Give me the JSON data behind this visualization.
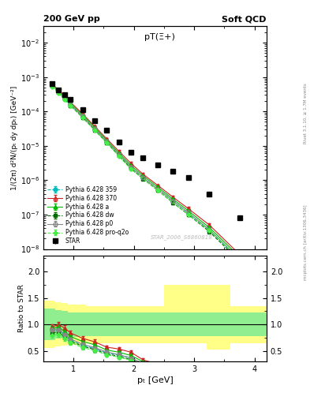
{
  "title_top_left": "200 GeV pp",
  "title_top_right": "Soft QCD",
  "plot_title": "pT(Ξ+)",
  "ylabel_main": "1/(2π) d²N/(pₜ dy dpₜ) [GeV⁻²]",
  "ylabel_ratio": "Ratio to STAR",
  "xlabel": "pₜ [GeV]",
  "watermark": "STAR_2006_S6860818",
  "right_label_top": "Rivet 3.1.10, ≥ 1.7M events",
  "right_label_bot": "mcplots.cern.ch [arXiv:1306.3436]",
  "star_pt": [
    0.65,
    0.75,
    0.85,
    0.95,
    1.15,
    1.35,
    1.55,
    1.75,
    1.95,
    2.15,
    2.4,
    2.65,
    2.9,
    3.25,
    3.75
  ],
  "star_val": [
    0.00065,
    0.00042,
    0.0003,
    0.00022,
    0.000115,
    5.5e-05,
    2.8e-05,
    1.3e-05,
    6.5e-06,
    4.5e-06,
    2.8e-06,
    1.8e-06,
    1.2e-06,
    4e-07,
    8e-08
  ],
  "star_err": [
    4e-05,
    3e-05,
    2e-05,
    1.5e-05,
    8e-06,
    4e-06,
    2e-06,
    9e-07,
    5e-07,
    3e-07,
    2e-07,
    1.5e-07,
    1e-07,
    4e-08,
    1e-08
  ],
  "p359_pt": [
    0.65,
    0.75,
    0.85,
    0.95,
    1.15,
    1.35,
    1.55,
    1.75,
    1.95,
    2.15,
    2.4,
    2.65,
    2.9,
    3.25,
    3.75
  ],
  "p359_val": [
    0.00058,
    0.00038,
    0.00024,
    0.000155,
    7e-05,
    3e-05,
    1.3e-05,
    5.5e-06,
    2.4e-06,
    1.2e-06,
    5.5e-07,
    2.5e-07,
    1.1e-07,
    3.5e-08,
    5e-09
  ],
  "p359_err": [
    3e-05,
    2e-05,
    1.5e-05,
    1e-05,
    5e-06,
    2.5e-06,
    1e-06,
    4e-07,
    2e-07,
    1e-07,
    5e-08,
    3e-08,
    1.5e-08,
    5e-09,
    8e-10
  ],
  "p370_pt": [
    0.65,
    0.75,
    0.85,
    0.95,
    1.15,
    1.35,
    1.55,
    1.75,
    1.95,
    2.15,
    2.4,
    2.65,
    2.9,
    3.25,
    3.75
  ],
  "p370_val": [
    0.00062,
    0.00042,
    0.00028,
    0.000185,
    8.5e-05,
    3.7e-05,
    1.6e-05,
    7e-06,
    3.1e-06,
    1.5e-06,
    7e-07,
    3.2e-07,
    1.5e-07,
    5e-08,
    7e-09
  ],
  "p370_err": [
    3e-05,
    2e-05,
    1.5e-05,
    1e-05,
    5e-06,
    2.5e-06,
    1e-06,
    5e-07,
    2.5e-07,
    1.2e-07,
    6e-08,
    3e-08,
    1.5e-08,
    5e-09,
    1e-09
  ],
  "pa_pt": [
    0.65,
    0.75,
    0.85,
    0.95,
    1.15,
    1.35,
    1.55,
    1.75,
    1.95,
    2.15,
    2.4,
    2.65,
    2.9,
    3.25,
    3.75
  ],
  "pa_val": [
    0.0006,
    0.0004,
    0.00026,
    0.00017,
    7.8e-05,
    3.4e-05,
    1.45e-05,
    6.2e-06,
    2.7e-06,
    1.35e-06,
    6.2e-07,
    2.8e-07,
    1.3e-07,
    4.2e-08,
    6e-09
  ],
  "pa_err": [
    3e-05,
    2e-05,
    1.5e-05,
    1e-05,
    5e-06,
    2.5e-06,
    1e-06,
    4.5e-07,
    2.2e-07,
    1.1e-07,
    5.5e-08,
    2.5e-08,
    1.2e-08,
    4e-09,
    8e-10
  ],
  "pdw_pt": [
    0.65,
    0.75,
    0.85,
    0.95,
    1.15,
    1.35,
    1.55,
    1.75,
    1.95,
    2.15,
    2.4,
    2.65,
    2.9,
    3.25,
    3.75
  ],
  "pdw_val": [
    0.00055,
    0.00036,
    0.00023,
    0.00015,
    6.8e-05,
    2.9e-05,
    1.25e-05,
    5.2e-06,
    2.2e-06,
    1.1e-06,
    5e-07,
    2.2e-07,
    1e-07,
    3.2e-08,
    4.5e-09
  ],
  "pdw_err": [
    3e-05,
    2e-05,
    1.5e-05,
    1e-05,
    5e-06,
    2.5e-06,
    1e-06,
    4e-07,
    2e-07,
    9e-08,
    4e-08,
    2e-08,
    1e-08,
    3e-09,
    5e-10
  ],
  "pp0_pt": [
    0.65,
    0.75,
    0.85,
    0.95,
    1.15,
    1.35,
    1.55,
    1.75,
    1.95,
    2.15,
    2.4,
    2.65,
    2.9,
    3.25,
    3.75
  ],
  "pp0_val": [
    0.00058,
    0.00038,
    0.000245,
    0.00016,
    7.2e-05,
    3.1e-05,
    1.35e-05,
    5.6e-06,
    2.4e-06,
    1.2e-06,
    5.5e-07,
    2.5e-07,
    1.15e-07,
    3.7e-08,
    5.2e-09
  ],
  "pp0_err": [
    3e-05,
    2e-05,
    1.5e-05,
    1e-05,
    5e-06,
    2.5e-06,
    1e-06,
    4e-07,
    2e-07,
    1e-07,
    5e-08,
    2.5e-08,
    1.2e-08,
    4e-09,
    7e-10
  ],
  "pq2o_pt": [
    0.65,
    0.75,
    0.85,
    0.95,
    1.15,
    1.35,
    1.55,
    1.75,
    1.95,
    2.4,
    2.9,
    3.25,
    3.75
  ],
  "pq2o_val": [
    0.00052,
    0.00034,
    0.00022,
    0.000145,
    6.5e-05,
    2.8e-05,
    1.2e-05,
    5e-06,
    2.1e-06,
    5e-07,
    1e-07,
    3.5e-08,
    5e-09
  ],
  "pq2o_err": [
    3e-05,
    2e-05,
    1.5e-05,
    1e-05,
    5e-06,
    2.5e-06,
    1e-06,
    4e-07,
    2e-07,
    4.5e-08,
    1e-08,
    3.5e-09,
    6e-10
  ],
  "ylim_main": [
    1e-08,
    0.03
  ],
  "ylim_ratio": [
    0.3,
    2.3
  ],
  "xlim": [
    0.5,
    4.2
  ],
  "bg_color": "#ffffff",
  "colors": {
    "star": "#000000",
    "p359": "#00bbbb",
    "p370": "#cc2222",
    "pa": "#00bb00",
    "pdw": "#006600",
    "pp0": "#888888",
    "pq2o": "#44ee44"
  },
  "band_green": "#90ee90",
  "band_yellow": "#ffff88",
  "ratio_band_edges": [
    0.5,
    0.6,
    0.7,
    0.8,
    0.9,
    1.0,
    1.1,
    1.2,
    1.4,
    1.6,
    1.8,
    2.0,
    2.3,
    2.5,
    2.8,
    3.2,
    3.6,
    4.2
  ],
  "ratio_yellow_lo": [
    0.55,
    0.55,
    0.58,
    0.6,
    0.62,
    0.62,
    0.63,
    0.65,
    0.65,
    0.65,
    0.65,
    0.65,
    0.65,
    0.65,
    0.65,
    0.52,
    0.65,
    0.65
  ],
  "ratio_yellow_hi": [
    1.45,
    1.45,
    1.42,
    1.4,
    1.38,
    1.38,
    1.37,
    1.35,
    1.35,
    1.35,
    1.35,
    1.35,
    1.35,
    1.75,
    1.75,
    1.75,
    1.35,
    1.35
  ],
  "ratio_green_lo": [
    0.7,
    0.7,
    0.73,
    0.75,
    0.77,
    0.77,
    0.78,
    0.78,
    0.78,
    0.78,
    0.78,
    0.78,
    0.78,
    0.78,
    0.78,
    0.78,
    0.78,
    0.78
  ],
  "ratio_green_hi": [
    1.3,
    1.3,
    1.27,
    1.25,
    1.23,
    1.23,
    1.22,
    1.22,
    1.22,
    1.22,
    1.22,
    1.22,
    1.22,
    1.22,
    1.22,
    1.22,
    1.22,
    1.22
  ]
}
